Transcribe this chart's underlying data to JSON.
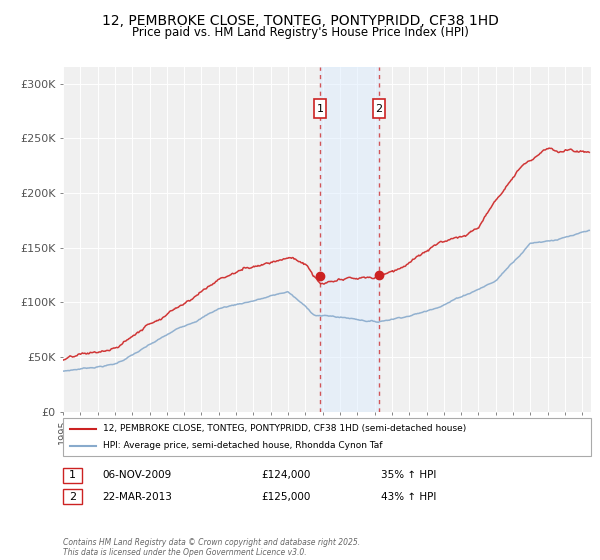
{
  "title": "12, PEMBROKE CLOSE, TONTEG, PONTYPRIDD, CF38 1HD",
  "subtitle": "Price paid vs. HM Land Registry's House Price Index (HPI)",
  "ylabel_ticks": [
    "£0",
    "£50K",
    "£100K",
    "£150K",
    "£200K",
    "£250K",
    "£300K"
  ],
  "ytick_values": [
    0,
    50000,
    100000,
    150000,
    200000,
    250000,
    300000
  ],
  "ylim": [
    0,
    315000
  ],
  "xlim_start": 1995.0,
  "xlim_end": 2025.5,
  "line1_color": "#cc2222",
  "line2_color": "#88aacc",
  "vline_color": "#cc2222",
  "shade_color": "#ddeeff",
  "shade_alpha": 0.5,
  "legend_line1": "12, PEMBROKE CLOSE, TONTEG, PONTYPRIDD, CF38 1HD (semi-detached house)",
  "legend_line2": "HPI: Average price, semi-detached house, Rhondda Cynon Taf",
  "annotation1_date": "06-NOV-2009",
  "annotation1_price": "£124,000",
  "annotation1_hpi": "35% ↑ HPI",
  "annotation2_date": "22-MAR-2013",
  "annotation2_price": "£125,000",
  "annotation2_hpi": "43% ↑ HPI",
  "footer": "Contains HM Land Registry data © Crown copyright and database right 2025.\nThis data is licensed under the Open Government Licence v3.0.",
  "point1_x": 2009.85,
  "point1_y": 124000,
  "point2_x": 2013.23,
  "point2_y": 125000,
  "background_color": "#ffffff",
  "plot_bg_color": "#f0f0f0"
}
